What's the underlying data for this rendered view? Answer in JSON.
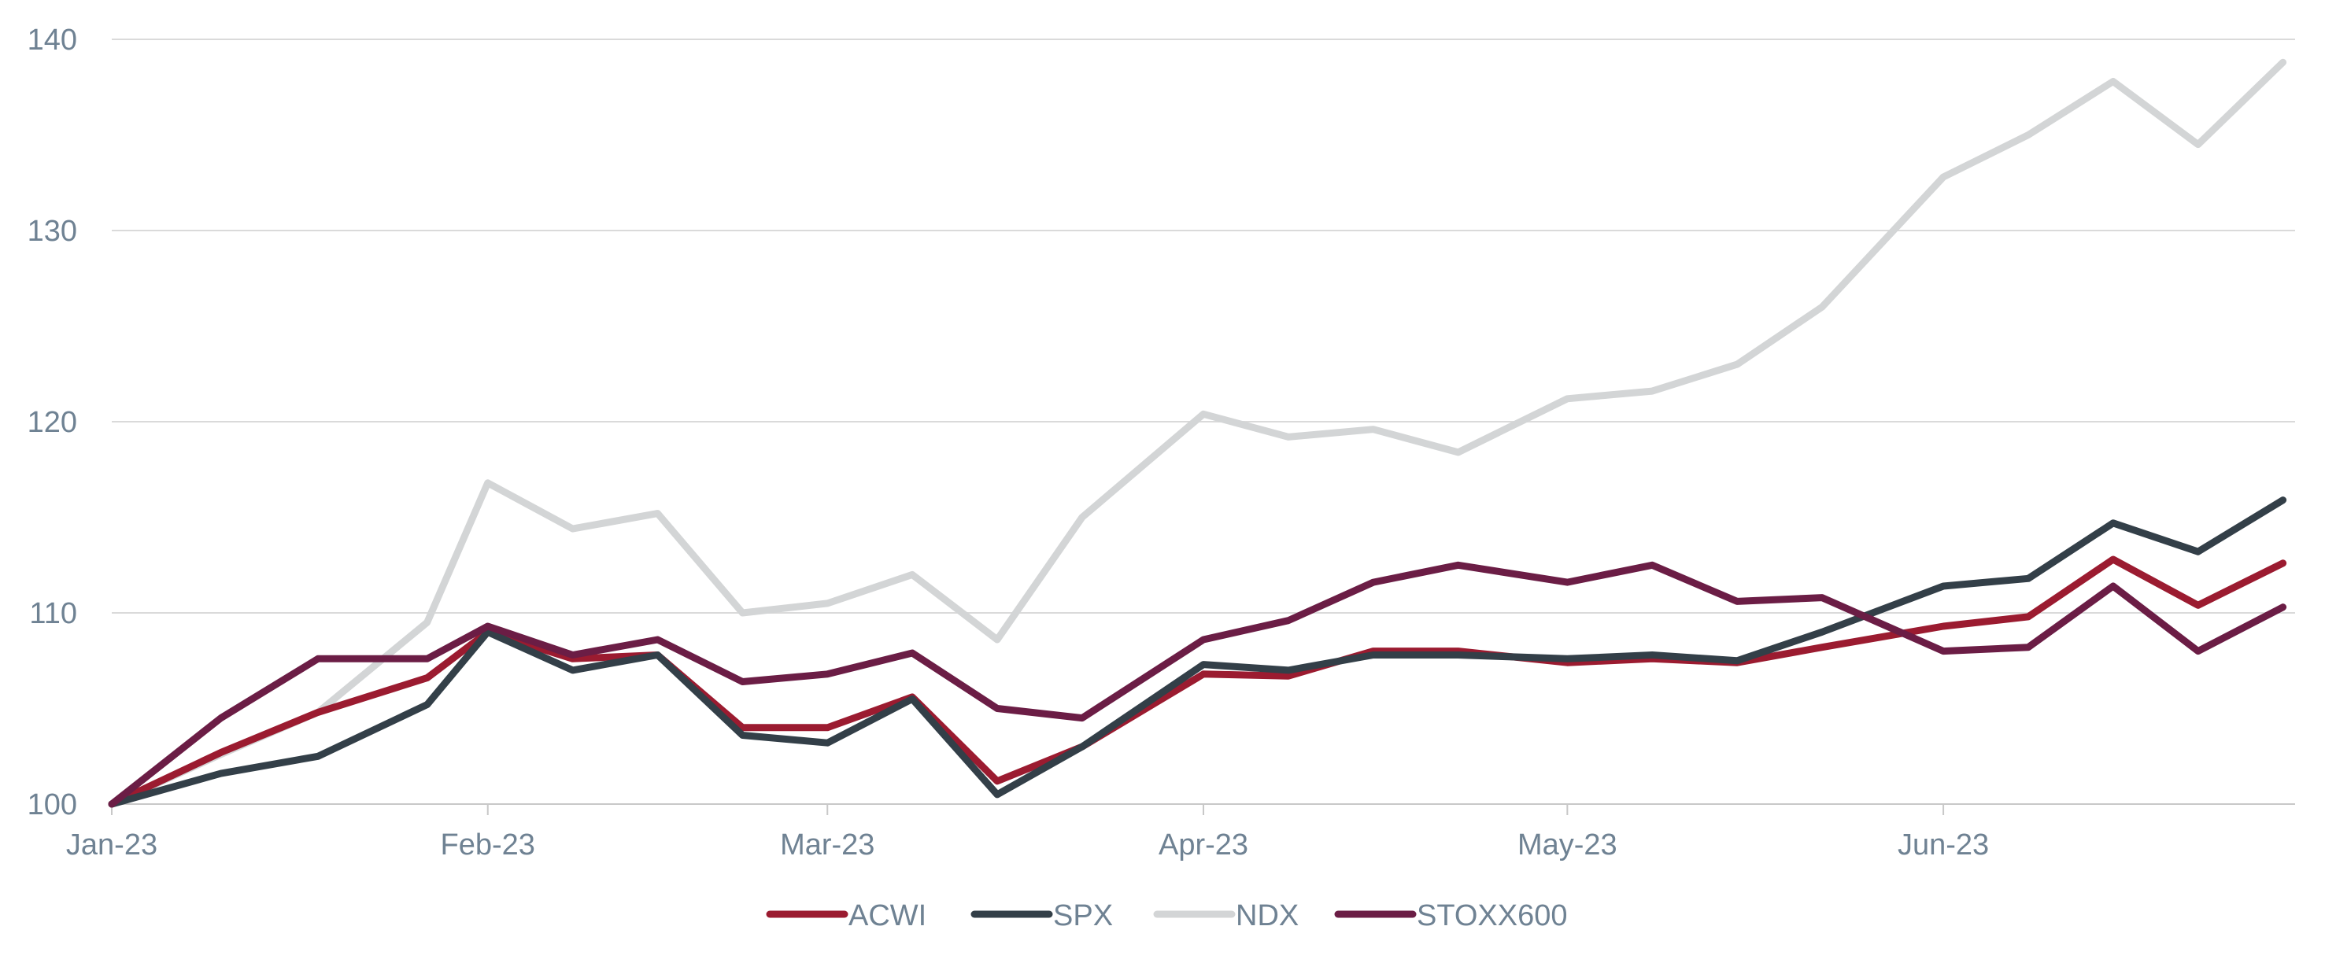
{
  "chart_data": {
    "type": "line",
    "title": "",
    "xlabel": "",
    "ylabel": "",
    "ylim": [
      100,
      140
    ],
    "y_ticks": [
      "100",
      "110",
      "120",
      "130",
      "140"
    ],
    "x_tick_labels": [
      "Jan-23",
      "Feb-23",
      "Mar-23",
      "Apr-23",
      "May-23",
      "Jun-23"
    ],
    "x_range": [
      "2023-01-01",
      "2023-06-30"
    ],
    "grid": "horizontal",
    "legend_position": "bottom-center",
    "x": [
      "2023-01-01",
      "2023-01-10",
      "2023-01-18",
      "2023-01-27",
      "2023-02-01",
      "2023-02-08",
      "2023-02-15",
      "2023-02-22",
      "2023-03-01",
      "2023-03-08",
      "2023-03-15",
      "2023-03-22",
      "2023-04-01",
      "2023-04-08",
      "2023-04-15",
      "2023-04-22",
      "2023-05-01",
      "2023-05-08",
      "2023-05-15",
      "2023-05-22",
      "2023-06-01",
      "2023-06-08",
      "2023-06-15",
      "2023-06-22",
      "2023-06-29"
    ],
    "series": [
      {
        "name": "ACWI",
        "color": "#9b1b30",
        "values": [
          100.0,
          102.7,
          104.8,
          106.6,
          109.0,
          107.6,
          107.8,
          104.0,
          104.0,
          105.6,
          101.2,
          103.0,
          106.8,
          106.7,
          108.0,
          108.0,
          107.4,
          107.6,
          107.4,
          108.2,
          109.3,
          109.8,
          112.8,
          110.4,
          112.6
        ]
      },
      {
        "name": "SPX",
        "color": "#333f48",
        "values": [
          100.0,
          101.6,
          102.5,
          105.2,
          109.0,
          107.0,
          107.8,
          103.6,
          103.2,
          105.5,
          100.5,
          103.0,
          107.3,
          107.0,
          107.8,
          107.8,
          107.6,
          107.8,
          107.5,
          109.0,
          111.4,
          111.8,
          114.7,
          113.2,
          115.9
        ]
      },
      {
        "name": "NDX",
        "color": "#d3d5d6",
        "values": [
          100.0,
          102.6,
          104.8,
          109.5,
          116.8,
          114.4,
          115.2,
          110.0,
          110.5,
          112.0,
          108.6,
          115.0,
          120.4,
          119.2,
          119.6,
          118.4,
          121.2,
          121.6,
          123.0,
          126.0,
          132.8,
          135.0,
          137.8,
          134.5,
          138.8
        ]
      },
      {
        "name": "STOXX600",
        "color": "#6b1d45",
        "values": [
          100.0,
          104.5,
          107.6,
          107.6,
          109.3,
          107.8,
          108.6,
          106.4,
          106.8,
          107.9,
          105.0,
          104.5,
          108.6,
          109.6,
          111.6,
          112.5,
          111.6,
          112.5,
          110.6,
          110.8,
          108.0,
          108.2,
          111.4,
          108.0,
          110.3
        ]
      }
    ]
  }
}
